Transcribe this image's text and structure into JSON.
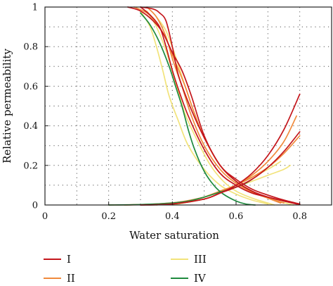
{
  "chart_data": {
    "type": "line",
    "title": "",
    "xlabel": "Water saturation",
    "ylabel": "Relative permeability",
    "xlim": [
      0,
      0.9
    ],
    "ylim": [
      0,
      1
    ],
    "xticks": [
      0,
      0.2,
      0.4,
      0.6,
      0.8
    ],
    "yticks": [
      0,
      0.2,
      0.4,
      0.6,
      0.8,
      1
    ],
    "grid": true,
    "legend_position": "bottom",
    "legend": [
      {
        "label": "I",
        "color": "#c4161c"
      },
      {
        "label": "II",
        "color": "#f08a3c"
      },
      {
        "label": "III",
        "color": "#f2e37a"
      },
      {
        "label": "IV",
        "color": "#1e8a3e"
      }
    ],
    "series": [
      {
        "group": "I",
        "color": "#c4161c",
        "x": [
          0.26,
          0.3,
          0.34,
          0.37,
          0.4,
          0.43,
          0.46,
          0.5,
          0.55,
          0.6,
          0.65,
          0.7,
          0.75,
          0.8
        ],
        "y": [
          1.0,
          0.98,
          0.93,
          0.87,
          0.77,
          0.68,
          0.55,
          0.35,
          0.2,
          0.13,
          0.08,
          0.05,
          0.025,
          0.005
        ]
      },
      {
        "group": "I",
        "color": "#c4161c",
        "x": [
          0.3,
          0.33,
          0.36,
          0.38,
          0.4,
          0.42,
          0.45,
          0.5,
          0.55,
          0.6,
          0.65,
          0.7,
          0.75,
          0.79
        ],
        "y": [
          1.0,
          0.96,
          0.9,
          0.8,
          0.68,
          0.58,
          0.45,
          0.28,
          0.16,
          0.1,
          0.06,
          0.04,
          0.02,
          0.005
        ]
      },
      {
        "group": "I",
        "color": "#c4161c",
        "x": [
          0.3,
          0.34,
          0.36,
          0.38,
          0.4,
          0.42,
          0.46,
          0.5,
          0.55,
          0.6,
          0.65,
          0.7,
          0.75,
          0.8
        ],
        "y": [
          1.0,
          0.99,
          0.97,
          0.93,
          0.8,
          0.65,
          0.48,
          0.34,
          0.2,
          0.12,
          0.07,
          0.04,
          0.02,
          0.003
        ]
      },
      {
        "group": "I",
        "color": "#c4161c",
        "x": [
          0.3,
          0.4,
          0.5,
          0.55,
          0.6,
          0.65,
          0.7,
          0.75,
          0.8
        ],
        "y": [
          0.0,
          0.005,
          0.03,
          0.06,
          0.1,
          0.16,
          0.25,
          0.38,
          0.56
        ]
      },
      {
        "group": "I",
        "color": "#c4161c",
        "x": [
          0.3,
          0.4,
          0.5,
          0.55,
          0.6,
          0.65,
          0.7,
          0.75,
          0.8
        ],
        "y": [
          0.0,
          0.005,
          0.03,
          0.06,
          0.09,
          0.13,
          0.19,
          0.27,
          0.37
        ]
      },
      {
        "group": "II",
        "color": "#f08a3c",
        "x": [
          0.28,
          0.32,
          0.35,
          0.38,
          0.41,
          0.44,
          0.47,
          0.5,
          0.55,
          0.6,
          0.65,
          0.7,
          0.74
        ],
        "y": [
          1.0,
          0.97,
          0.92,
          0.84,
          0.72,
          0.6,
          0.46,
          0.34,
          0.2,
          0.12,
          0.07,
          0.035,
          0.01
        ]
      },
      {
        "group": "II",
        "color": "#f08a3c",
        "x": [
          0.32,
          0.35,
          0.38,
          0.4,
          0.43,
          0.46,
          0.5,
          0.55,
          0.6,
          0.65,
          0.7,
          0.75
        ],
        "y": [
          1.0,
          0.95,
          0.85,
          0.74,
          0.6,
          0.45,
          0.3,
          0.18,
          0.11,
          0.065,
          0.035,
          0.01
        ]
      },
      {
        "group": "II",
        "color": "#f08a3c",
        "x": [
          0.2,
          0.3,
          0.4,
          0.5,
          0.55,
          0.6,
          0.65,
          0.7,
          0.75,
          0.79
        ],
        "y": [
          0.0,
          0.002,
          0.01,
          0.04,
          0.07,
          0.1,
          0.15,
          0.22,
          0.32,
          0.45
        ]
      },
      {
        "group": "II",
        "color": "#f08a3c",
        "x": [
          0.25,
          0.35,
          0.45,
          0.5,
          0.55,
          0.6,
          0.65,
          0.7,
          0.75,
          0.8
        ],
        "y": [
          0.0,
          0.005,
          0.02,
          0.04,
          0.07,
          0.1,
          0.14,
          0.19,
          0.26,
          0.35
        ]
      },
      {
        "group": "III",
        "color": "#f2e37a",
        "x": [
          0.3,
          0.33,
          0.35,
          0.37,
          0.39,
          0.42,
          0.45,
          0.5,
          0.55,
          0.6,
          0.65,
          0.7
        ],
        "y": [
          0.98,
          0.9,
          0.8,
          0.68,
          0.55,
          0.42,
          0.3,
          0.18,
          0.1,
          0.055,
          0.025,
          0.005
        ]
      },
      {
        "group": "III",
        "color": "#f2e37a",
        "x": [
          0.32,
          0.35,
          0.38,
          0.41,
          0.44,
          0.48,
          0.52,
          0.56,
          0.6,
          0.65,
          0.7,
          0.72
        ],
        "y": [
          0.98,
          0.9,
          0.78,
          0.62,
          0.46,
          0.32,
          0.2,
          0.12,
          0.07,
          0.035,
          0.01,
          0.0
        ]
      },
      {
        "group": "III",
        "color": "#f2e37a",
        "x": [
          0.35,
          0.38,
          0.41,
          0.44,
          0.47,
          0.5,
          0.55,
          0.6,
          0.65,
          0.7,
          0.75,
          0.78
        ],
        "y": [
          0.95,
          0.88,
          0.75,
          0.6,
          0.46,
          0.34,
          0.2,
          0.12,
          0.07,
          0.035,
          0.012,
          0.0
        ]
      },
      {
        "group": "III",
        "color": "#f2e37a",
        "x": [
          0.4,
          0.5,
          0.55,
          0.6,
          0.65,
          0.7,
          0.75,
          0.77
        ],
        "y": [
          0.0,
          0.03,
          0.06,
          0.09,
          0.12,
          0.15,
          0.18,
          0.2
        ]
      },
      {
        "group": "III",
        "color": "#f2e37a",
        "x": [
          0.35,
          0.45,
          0.5,
          0.55,
          0.6,
          0.65,
          0.7,
          0.74
        ],
        "y": [
          0.0,
          0.02,
          0.04,
          0.07,
          0.1,
          0.14,
          0.18,
          0.22
        ]
      },
      {
        "group": "IV",
        "color": "#1e8a3e",
        "x": [
          0.3,
          0.33,
          0.36,
          0.39,
          0.41,
          0.43,
          0.45,
          0.47,
          0.5,
          0.53,
          0.56,
          0.6,
          0.63,
          0.66
        ],
        "y": [
          0.97,
          0.91,
          0.82,
          0.7,
          0.6,
          0.5,
          0.38,
          0.28,
          0.17,
          0.1,
          0.055,
          0.02,
          0.005,
          0.0
        ]
      },
      {
        "group": "IV",
        "color": "#1e8a3e",
        "x": [
          0.2,
          0.3,
          0.4,
          0.45,
          0.5,
          0.55,
          0.6,
          0.63,
          0.65
        ],
        "y": [
          0.0,
          0.002,
          0.01,
          0.02,
          0.04,
          0.065,
          0.09,
          0.11,
          0.13
        ]
      }
    ]
  }
}
